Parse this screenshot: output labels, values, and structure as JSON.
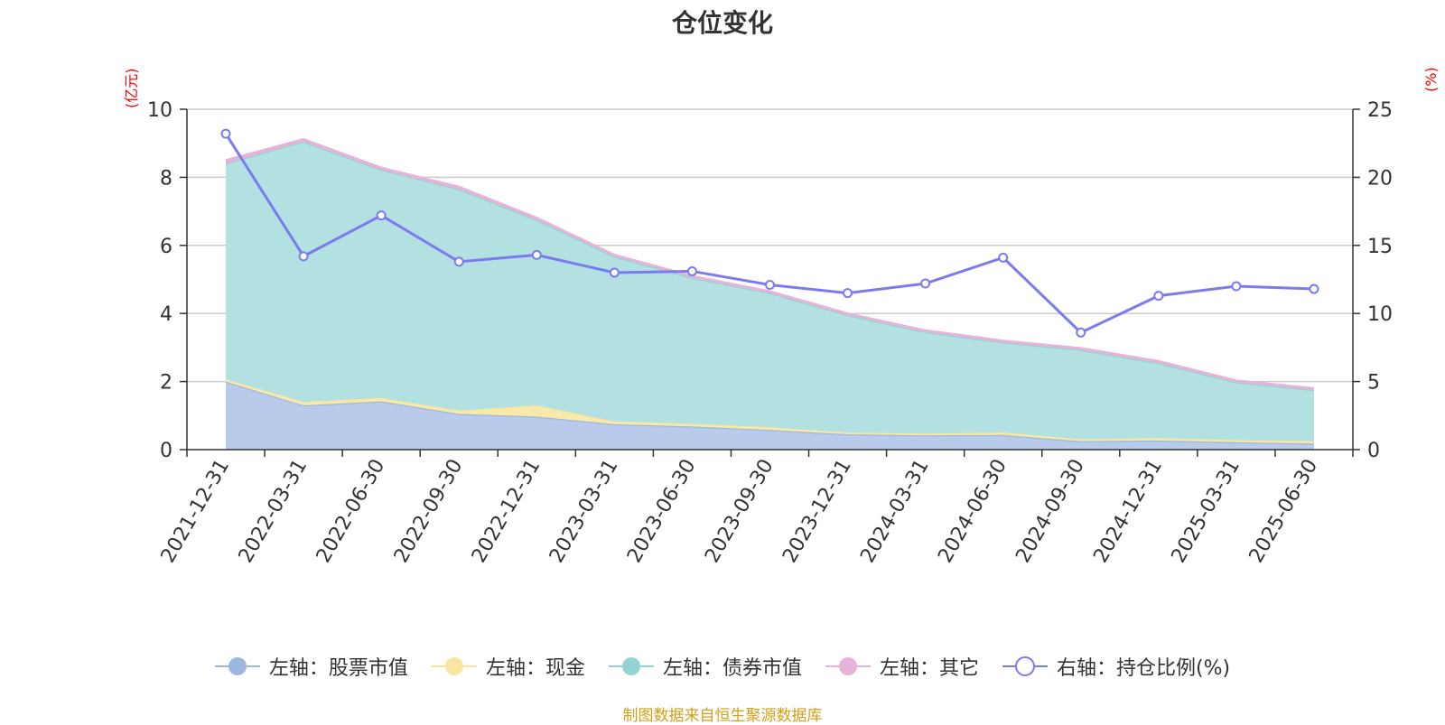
{
  "title": "仓位变化",
  "unit_left": "(亿元)",
  "unit_right": "(%)",
  "source": "制图数据来自恒生聚源数据库",
  "legend": [
    {
      "label": "左轴：股票市值",
      "color": "#9db8e0",
      "symbol": "filled-circle"
    },
    {
      "label": "左轴：现金",
      "color": "#f8e6a0",
      "symbol": "filled-circle"
    },
    {
      "label": "左轴：债券市值",
      "color": "#94d3d3",
      "symbol": "filled-circle"
    },
    {
      "label": "左轴：其它",
      "color": "#e8b3d8",
      "symbol": "filled-circle"
    },
    {
      "label": "右轴：持仓比例(%)",
      "color": "#7b7bf0",
      "symbol": "hollow-circle"
    }
  ],
  "chart_data": {
    "type": "area",
    "title": "仓位变化",
    "categories": [
      "2021-12-31",
      "2022-03-31",
      "2022-06-30",
      "2022-09-30",
      "2022-12-31",
      "2023-03-31",
      "2023-06-30",
      "2023-09-30",
      "2023-12-31",
      "2024-03-31",
      "2024-06-30",
      "2024-09-30",
      "2024-12-31",
      "2025-03-31",
      "2025-06-30"
    ],
    "y_left": {
      "unit": "(亿元)",
      "min": 0,
      "max": 10,
      "ticks": [
        0,
        2,
        4,
        6,
        8,
        10
      ]
    },
    "y_right": {
      "unit": "(%)",
      "min": 0,
      "max": 25,
      "ticks": [
        0,
        5,
        10,
        15,
        20,
        25
      ]
    },
    "grid": true,
    "legend_position": "bottom",
    "series": [
      {
        "name": "左轴：股票市值",
        "axis": "left",
        "stack": true,
        "color": "#b8cbea",
        "values": [
          2.0,
          1.3,
          1.42,
          1.05,
          0.97,
          0.75,
          0.68,
          0.58,
          0.45,
          0.42,
          0.43,
          0.25,
          0.27,
          0.22,
          0.18
        ]
      },
      {
        "name": "左轴：现金",
        "axis": "left",
        "stack": true,
        "color": "#f9e9a8",
        "values": [
          0.07,
          0.1,
          0.1,
          0.1,
          0.33,
          0.08,
          0.08,
          0.08,
          0.05,
          0.05,
          0.07,
          0.06,
          0.07,
          0.06,
          0.07
        ]
      },
      {
        "name": "左轴：债券市值",
        "axis": "left",
        "stack": true,
        "color": "#b3e0e0",
        "values": [
          6.34,
          7.65,
          6.7,
          6.5,
          5.45,
          4.84,
          4.29,
          3.94,
          3.45,
          2.98,
          2.65,
          2.62,
          2.2,
          1.7,
          1.5
        ]
      },
      {
        "name": "左轴：其它",
        "axis": "left",
        "stack": true,
        "color": "#e8b3d8",
        "values": [
          0.09,
          0.07,
          0.06,
          0.07,
          0.06,
          0.05,
          0.05,
          0.05,
          0.05,
          0.05,
          0.05,
          0.05,
          0.06,
          0.05,
          0.05
        ]
      },
      {
        "name": "右轴：持仓比例(%)",
        "axis": "right",
        "type": "line",
        "color": "#7b7bf0",
        "values": [
          23.2,
          14.2,
          17.2,
          13.8,
          14.3,
          13.0,
          13.1,
          12.1,
          11.5,
          12.2,
          14.1,
          8.6,
          11.3,
          12.0,
          11.8
        ]
      }
    ]
  }
}
